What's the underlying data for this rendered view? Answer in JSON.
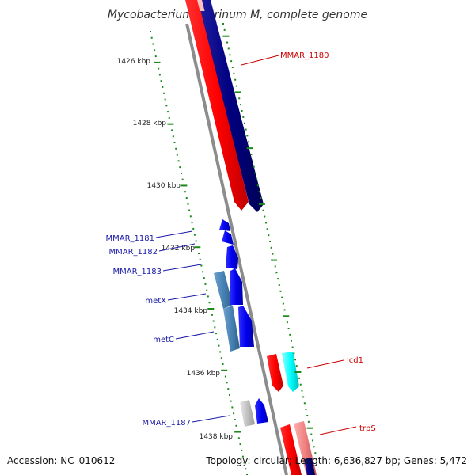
{
  "title": "Mycobacterium marinum M, complete genome",
  "footer": {
    "accession": "Accession: NC_010612",
    "summary": "Topology: circular; Length: 6,636,827 bp; Genes: 5,472"
  },
  "ticks": [
    "1426 kbp",
    "1428 kbp",
    "1430 kbp",
    "1432 kbp",
    "1434 kbp",
    "1436 kbp",
    "1438 kbp"
  ],
  "genes": {
    "mmar_1180": "MMAR_1180",
    "mmar_1181": "MMAR_1181",
    "mmar_1182": "MMAR_1182",
    "mmar_1183": "MMAR_1183",
    "metx": "metX",
    "metc": "metC",
    "icd1": "icd1",
    "mmar_1187": "MMAR_1187",
    "trps": "trpS"
  },
  "colors": {
    "backbone": "#8c8c8c",
    "red": "#ff0000",
    "navy": "#000080",
    "blue": "#0000ee",
    "steel": "#4682b4",
    "cyan": "#00ffff",
    "gray": "#c0c0c0",
    "pink": "#f08080",
    "tick": "#1a8a1a"
  }
}
